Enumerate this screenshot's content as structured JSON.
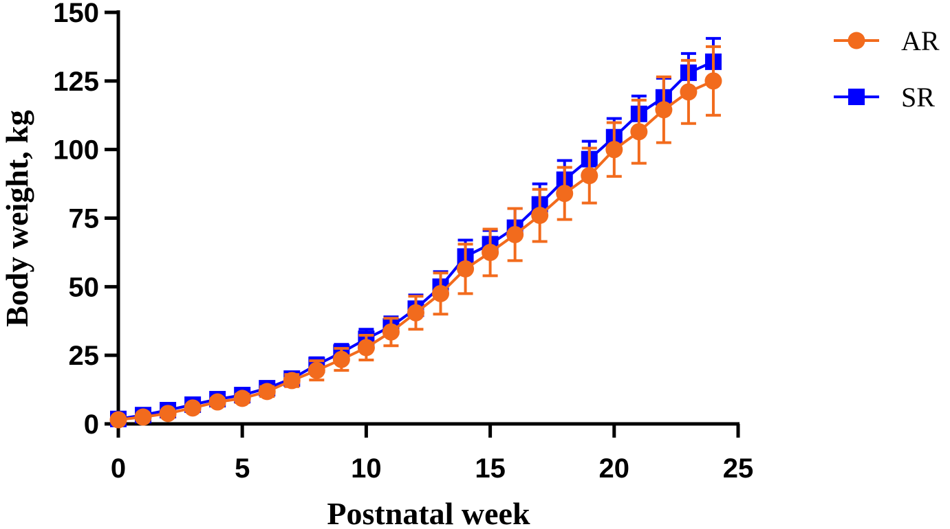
{
  "chart_data": {
    "type": "line",
    "title": "",
    "xlabel": "Postnatal week",
    "ylabel": "Body weight, kg",
    "xlim": [
      0,
      25
    ],
    "ylim": [
      0,
      150
    ],
    "xticks": [
      "0",
      "5",
      "10",
      "15",
      "20",
      "25"
    ],
    "yticks": [
      "0",
      "25",
      "50",
      "75",
      "100",
      "125",
      "150"
    ],
    "grid": false,
    "legend_position": "top-right",
    "x": [
      0,
      1,
      2,
      3,
      4,
      5,
      6,
      7,
      8,
      9,
      10,
      11,
      12,
      13,
      14,
      15,
      16,
      17,
      18,
      19,
      20,
      21,
      22,
      23,
      24
    ],
    "series": [
      {
        "name": "SR",
        "color": "#0000FF",
        "marker": "square",
        "values": [
          1.8,
          3.2,
          5,
          7,
          9,
          10.5,
          13,
          16.5,
          21.5,
          26,
          31,
          35.5,
          42,
          50,
          61,
          65.5,
          71.5,
          80,
          89,
          96.5,
          104.5,
          113,
          119,
          128,
          132
        ],
        "errors": [
          0.3,
          0.5,
          0.7,
          1,
          1.3,
          1.5,
          1.8,
          2.2,
          2.6,
          3,
          3.5,
          3.5,
          5,
          5.5,
          6,
          5,
          7,
          7.5,
          7,
          6.5,
          6.8,
          6.5,
          7,
          7,
          8.5
        ]
      },
      {
        "name": "AR",
        "color": "#F26B1D",
        "marker": "circle",
        "values": [
          1.5,
          2.5,
          3.8,
          5.8,
          8,
          9.3,
          11.8,
          15.8,
          19.5,
          23.5,
          27.8,
          33.5,
          40.5,
          47.5,
          56.5,
          62.5,
          69,
          76,
          84,
          90.5,
          100,
          106.5,
          114.5,
          121,
          125
        ],
        "errors": [
          0.3,
          0.5,
          0.7,
          1,
          1.3,
          1.5,
          1.8,
          2.2,
          3.5,
          4,
          4.5,
          5,
          6,
          7.5,
          9,
          8.5,
          9.5,
          9.5,
          9.5,
          10,
          9.8,
          11.5,
          12,
          11.5,
          12.5
        ]
      }
    ]
  }
}
